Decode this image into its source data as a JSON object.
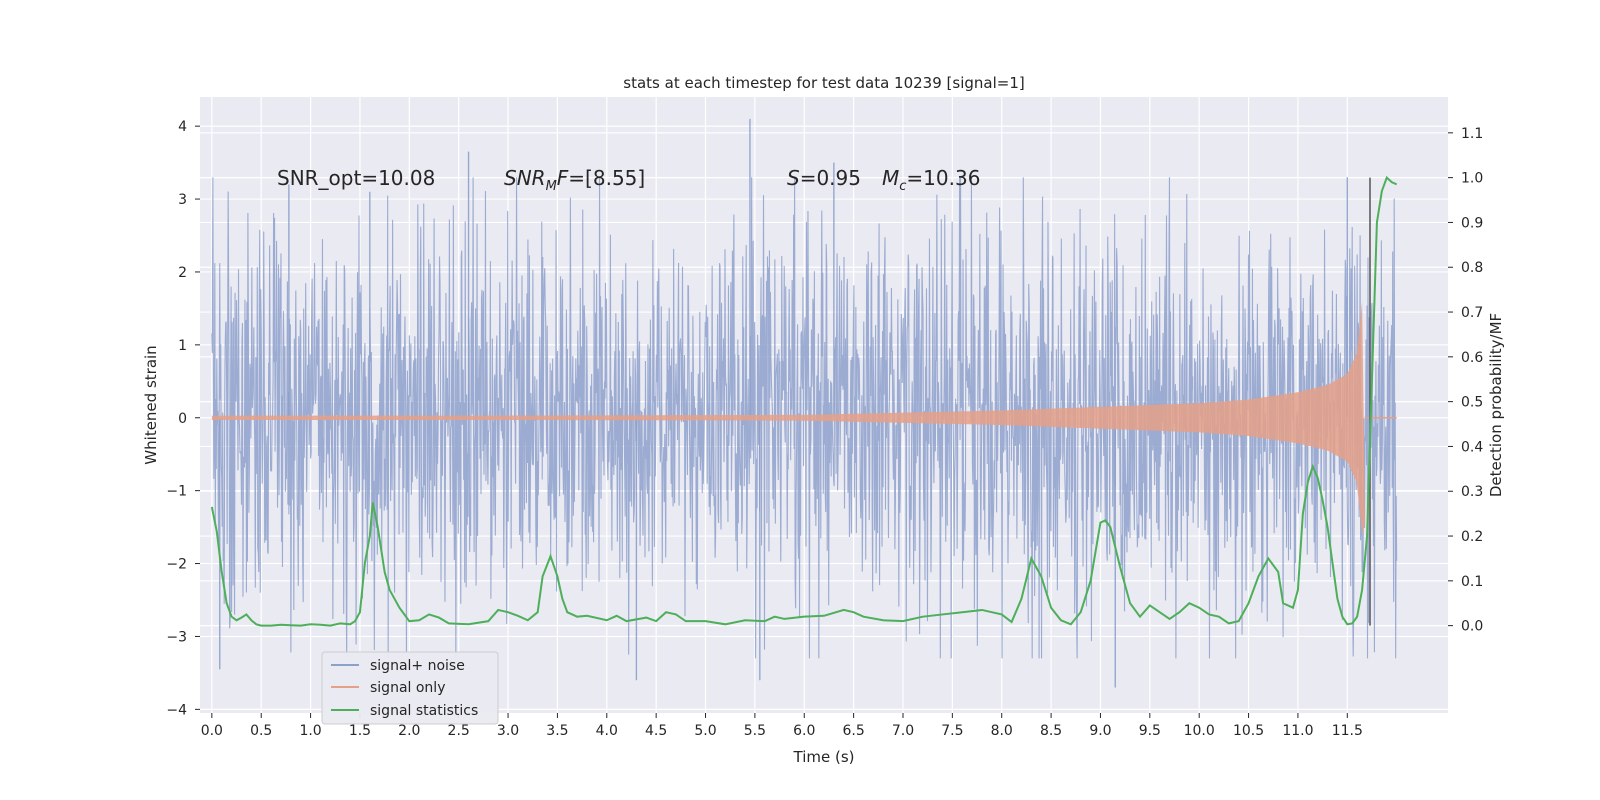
{
  "chart_data": {
    "type": "line",
    "title": "stats at each timestep for test data 10239 [signal=1]",
    "xlabel": "Time (s)",
    "ylabel": "Whitened strain",
    "y2label": "Detection probability/MF",
    "xlim": [
      -0.12,
      12.52
    ],
    "ylim": [
      -4.05,
      4.4
    ],
    "y2lim": [
      -0.195,
      1.18
    ],
    "x_ticks": [
      "0.0",
      "0.5",
      "1.0",
      "1.5",
      "2.0",
      "2.5",
      "3.0",
      "3.5",
      "4.0",
      "4.5",
      "5.0",
      "5.5",
      "6.0",
      "6.5",
      "7.0",
      "7.5",
      "8.0",
      "8.5",
      "9.0",
      "9.5",
      "10.0",
      "10.5",
      "11.0",
      "11.5"
    ],
    "y_ticks": [
      "4",
      "3",
      "2",
      "1",
      "0",
      "−1",
      "−2",
      "−3",
      "−4"
    ],
    "y2_ticks": [
      "1.1",
      "1.0",
      "0.9",
      "0.8",
      "0.7",
      "0.6",
      "0.5",
      "0.4",
      "0.3",
      "0.2",
      "0.1",
      "0.0"
    ],
    "grid": true,
    "legend_position": "lower-left",
    "annotations": {
      "snr_opt": "SNR_opt=10.08",
      "snr_mf_main": "SNR",
      "snr_mf_sub": "M",
      "snr_mf_rest": "F",
      "snr_mf_value": "=[8.55]",
      "s_symbol": "S",
      "s_value": "=0.95",
      "mc_symbol": "M",
      "mc_sub": "c",
      "mc_value": "=10.36"
    },
    "series": [
      {
        "name": "signal+ noise",
        "color": "#8da0cb",
        "axis": "left",
        "duration_s": 12.0,
        "envelope_mean_abs": 1.4,
        "spike_peaks": [
          {
            "x": 0.08,
            "y": -3.45
          },
          {
            "x": 0.78,
            "y": 3.2
          },
          {
            "x": 1.6,
            "y": 3.1
          },
          {
            "x": 2.6,
            "y": 3.65
          },
          {
            "x": 4.3,
            "y": -3.6
          },
          {
            "x": 5.45,
            "y": 4.1
          },
          {
            "x": 5.55,
            "y": -3.6
          },
          {
            "x": 6.3,
            "y": 3.5
          },
          {
            "x": 9.15,
            "y": -3.7
          },
          {
            "x": 11.5,
            "y": 3.3
          }
        ]
      },
      {
        "name": "signal only",
        "color": "#e5a088",
        "axis": "left",
        "envelope": [
          {
            "x": 0.0,
            "y": 0.03
          },
          {
            "x": 3.0,
            "y": 0.03
          },
          {
            "x": 6.0,
            "y": 0.04
          },
          {
            "x": 8.0,
            "y": 0.1
          },
          {
            "x": 9.0,
            "y": 0.15
          },
          {
            "x": 10.0,
            "y": 0.2
          },
          {
            "x": 10.5,
            "y": 0.25
          },
          {
            "x": 11.0,
            "y": 0.35
          },
          {
            "x": 11.3,
            "y": 0.45
          },
          {
            "x": 11.5,
            "y": 0.6
          },
          {
            "x": 11.6,
            "y": 0.9
          },
          {
            "x": 11.65,
            "y": 1.6
          }
        ],
        "merger_time": 11.65
      },
      {
        "name": "signal statistics",
        "color": "#4daf5a",
        "axis": "right",
        "points": [
          [
            0.0,
            0.265
          ],
          [
            0.05,
            0.21
          ],
          [
            0.1,
            0.12
          ],
          [
            0.15,
            0.05
          ],
          [
            0.2,
            0.02
          ],
          [
            0.25,
            0.012
          ],
          [
            0.3,
            0.018
          ],
          [
            0.35,
            0.025
          ],
          [
            0.4,
            0.012
          ],
          [
            0.45,
            0.003
          ],
          [
            0.5,
            0.0
          ],
          [
            0.6,
            0.0
          ],
          [
            0.7,
            0.002
          ],
          [
            0.8,
            0.001
          ],
          [
            0.9,
            0.0
          ],
          [
            1.0,
            0.003
          ],
          [
            1.1,
            0.002
          ],
          [
            1.2,
            0.0
          ],
          [
            1.3,
            0.005
          ],
          [
            1.4,
            0.003
          ],
          [
            1.45,
            0.01
          ],
          [
            1.5,
            0.03
          ],
          [
            1.55,
            0.14
          ],
          [
            1.6,
            0.2
          ],
          [
            1.63,
            0.275
          ],
          [
            1.68,
            0.22
          ],
          [
            1.75,
            0.12
          ],
          [
            1.8,
            0.08
          ],
          [
            1.9,
            0.04
          ],
          [
            2.0,
            0.01
          ],
          [
            2.1,
            0.012
          ],
          [
            2.2,
            0.025
          ],
          [
            2.3,
            0.018
          ],
          [
            2.4,
            0.005
          ],
          [
            2.6,
            0.003
          ],
          [
            2.8,
            0.01
          ],
          [
            2.9,
            0.035
          ],
          [
            3.0,
            0.03
          ],
          [
            3.1,
            0.022
          ],
          [
            3.2,
            0.012
          ],
          [
            3.3,
            0.03
          ],
          [
            3.35,
            0.11
          ],
          [
            3.43,
            0.155
          ],
          [
            3.5,
            0.11
          ],
          [
            3.55,
            0.06
          ],
          [
            3.6,
            0.03
          ],
          [
            3.7,
            0.02
          ],
          [
            3.8,
            0.022
          ],
          [
            4.0,
            0.012
          ],
          [
            4.1,
            0.022
          ],
          [
            4.2,
            0.01
          ],
          [
            4.4,
            0.018
          ],
          [
            4.5,
            0.01
          ],
          [
            4.6,
            0.03
          ],
          [
            4.7,
            0.025
          ],
          [
            4.8,
            0.01
          ],
          [
            5.0,
            0.01
          ],
          [
            5.2,
            0.003
          ],
          [
            5.4,
            0.012
          ],
          [
            5.6,
            0.01
          ],
          [
            5.7,
            0.02
          ],
          [
            5.8,
            0.015
          ],
          [
            6.0,
            0.02
          ],
          [
            6.2,
            0.022
          ],
          [
            6.4,
            0.035
          ],
          [
            6.5,
            0.03
          ],
          [
            6.6,
            0.02
          ],
          [
            6.8,
            0.012
          ],
          [
            7.0,
            0.01
          ],
          [
            7.2,
            0.02
          ],
          [
            7.4,
            0.025
          ],
          [
            7.6,
            0.03
          ],
          [
            7.8,
            0.035
          ],
          [
            7.9,
            0.03
          ],
          [
            8.0,
            0.025
          ],
          [
            8.1,
            0.008
          ],
          [
            8.2,
            0.06
          ],
          [
            8.3,
            0.15
          ],
          [
            8.4,
            0.11
          ],
          [
            8.5,
            0.04
          ],
          [
            8.6,
            0.012
          ],
          [
            8.7,
            0.003
          ],
          [
            8.8,
            0.03
          ],
          [
            8.9,
            0.1
          ],
          [
            9.0,
            0.23
          ],
          [
            9.05,
            0.235
          ],
          [
            9.1,
            0.22
          ],
          [
            9.2,
            0.13
          ],
          [
            9.3,
            0.05
          ],
          [
            9.4,
            0.02
          ],
          [
            9.5,
            0.045
          ],
          [
            9.6,
            0.03
          ],
          [
            9.7,
            0.015
          ],
          [
            9.8,
            0.03
          ],
          [
            9.9,
            0.05
          ],
          [
            10.0,
            0.04
          ],
          [
            10.1,
            0.025
          ],
          [
            10.2,
            0.02
          ],
          [
            10.3,
            0.005
          ],
          [
            10.4,
            0.01
          ],
          [
            10.5,
            0.05
          ],
          [
            10.6,
            0.11
          ],
          [
            10.7,
            0.15
          ],
          [
            10.8,
            0.12
          ],
          [
            10.85,
            0.05
          ],
          [
            10.95,
            0.04
          ],
          [
            11.0,
            0.08
          ],
          [
            11.05,
            0.25
          ],
          [
            11.1,
            0.32
          ],
          [
            11.15,
            0.355
          ],
          [
            11.2,
            0.33
          ],
          [
            11.25,
            0.28
          ],
          [
            11.3,
            0.22
          ],
          [
            11.35,
            0.14
          ],
          [
            11.4,
            0.06
          ],
          [
            11.45,
            0.02
          ],
          [
            11.5,
            0.003
          ],
          [
            11.55,
            0.005
          ],
          [
            11.6,
            0.02
          ],
          [
            11.65,
            0.08
          ],
          [
            11.7,
            0.2
          ],
          [
            11.75,
            0.55
          ],
          [
            11.8,
            0.9
          ],
          [
            11.85,
            0.97
          ],
          [
            11.9,
            1.0
          ],
          [
            11.95,
            0.99
          ],
          [
            12.0,
            0.985
          ]
        ]
      },
      {
        "name": "merger marker",
        "color": "#555555",
        "axis": "right",
        "x": 11.73,
        "y_range": [
          0.0,
          1.0
        ]
      }
    ]
  }
}
